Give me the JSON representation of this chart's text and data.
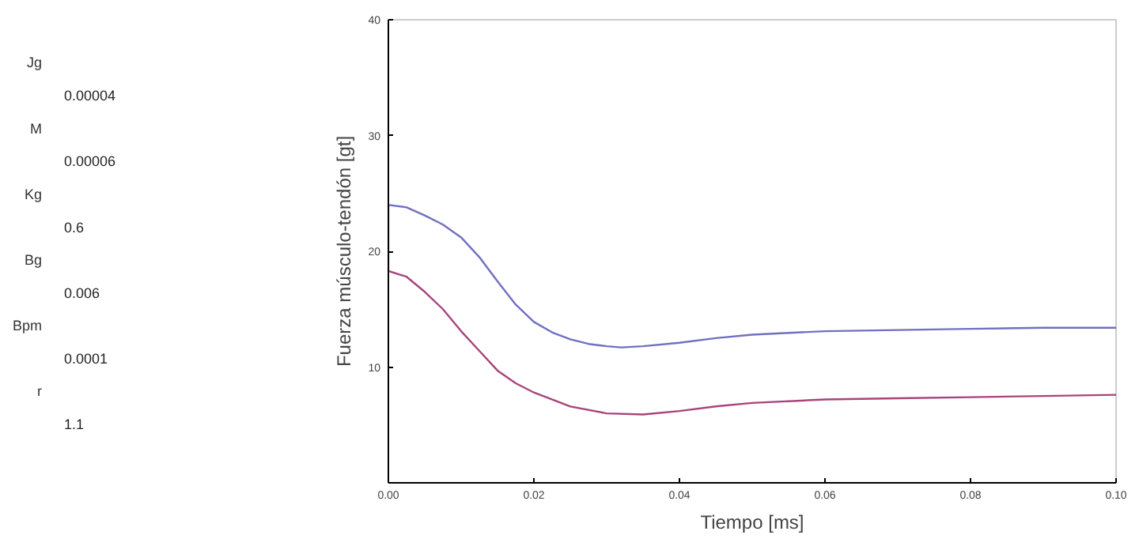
{
  "chart_data": {
    "type": "line",
    "xlabel": "Tiempo [ms]",
    "ylabel": "Fuerza músculo-tendón [gt]",
    "annotations": [
      "Jg",
      "0.00004",
      "M",
      "0.00006",
      "Kg",
      "0.6",
      "Bg",
      "0.006",
      "Bpm",
      "0.0001",
      "r",
      "1.1"
    ],
    "xlim": [
      0,
      0.1
    ],
    "ylim": [
      0,
      40
    ],
    "xticks": [
      {
        "value": 0,
        "label": "0.00"
      },
      {
        "value": 0.02,
        "label": "0.02"
      },
      {
        "value": 0.04,
        "label": "0.04"
      },
      {
        "value": 0.06,
        "label": "0.06"
      },
      {
        "value": 0.08,
        "label": "0.08"
      },
      {
        "value": 0.1,
        "label": "0.10"
      }
    ],
    "yticks": [
      10,
      20,
      30,
      40
    ],
    "series": [
      {
        "color": "#7070c0",
        "x": [
          0,
          0.0025,
          0.005,
          0.0075,
          0.01,
          0.0125,
          0.015,
          0.0175,
          0.02,
          0.0225,
          0.025,
          0.0275,
          0.03,
          0.032,
          0.035,
          0.04,
          0.045,
          0.05,
          0.06,
          0.07,
          0.08,
          0.09,
          0.1
        ],
        "values": [
          24.0,
          23.8,
          23.1,
          22.3,
          21.2,
          19.5,
          17.4,
          15.4,
          13.9,
          13.0,
          12.4,
          12.0,
          11.8,
          11.7,
          11.8,
          12.1,
          12.5,
          12.8,
          13.1,
          13.2,
          13.3,
          13.4,
          13.4
        ]
      },
      {
        "color": "#a8447a",
        "x": [
          0,
          0,
          0.0025,
          0.005,
          0.0075,
          0.01,
          0.0125,
          0.015,
          0.0175,
          0.02,
          0.025,
          0.03,
          0.035,
          0.04,
          0.045,
          0.05,
          0.06,
          0.07,
          0.08,
          0.09,
          0.1
        ],
        "values": [
          24.0,
          18.3,
          17.8,
          16.5,
          15.0,
          13.1,
          11.4,
          9.7,
          8.6,
          7.8,
          6.6,
          6.0,
          5.9,
          6.2,
          6.6,
          6.9,
          7.2,
          7.3,
          7.4,
          7.5,
          7.6
        ]
      }
    ]
  }
}
